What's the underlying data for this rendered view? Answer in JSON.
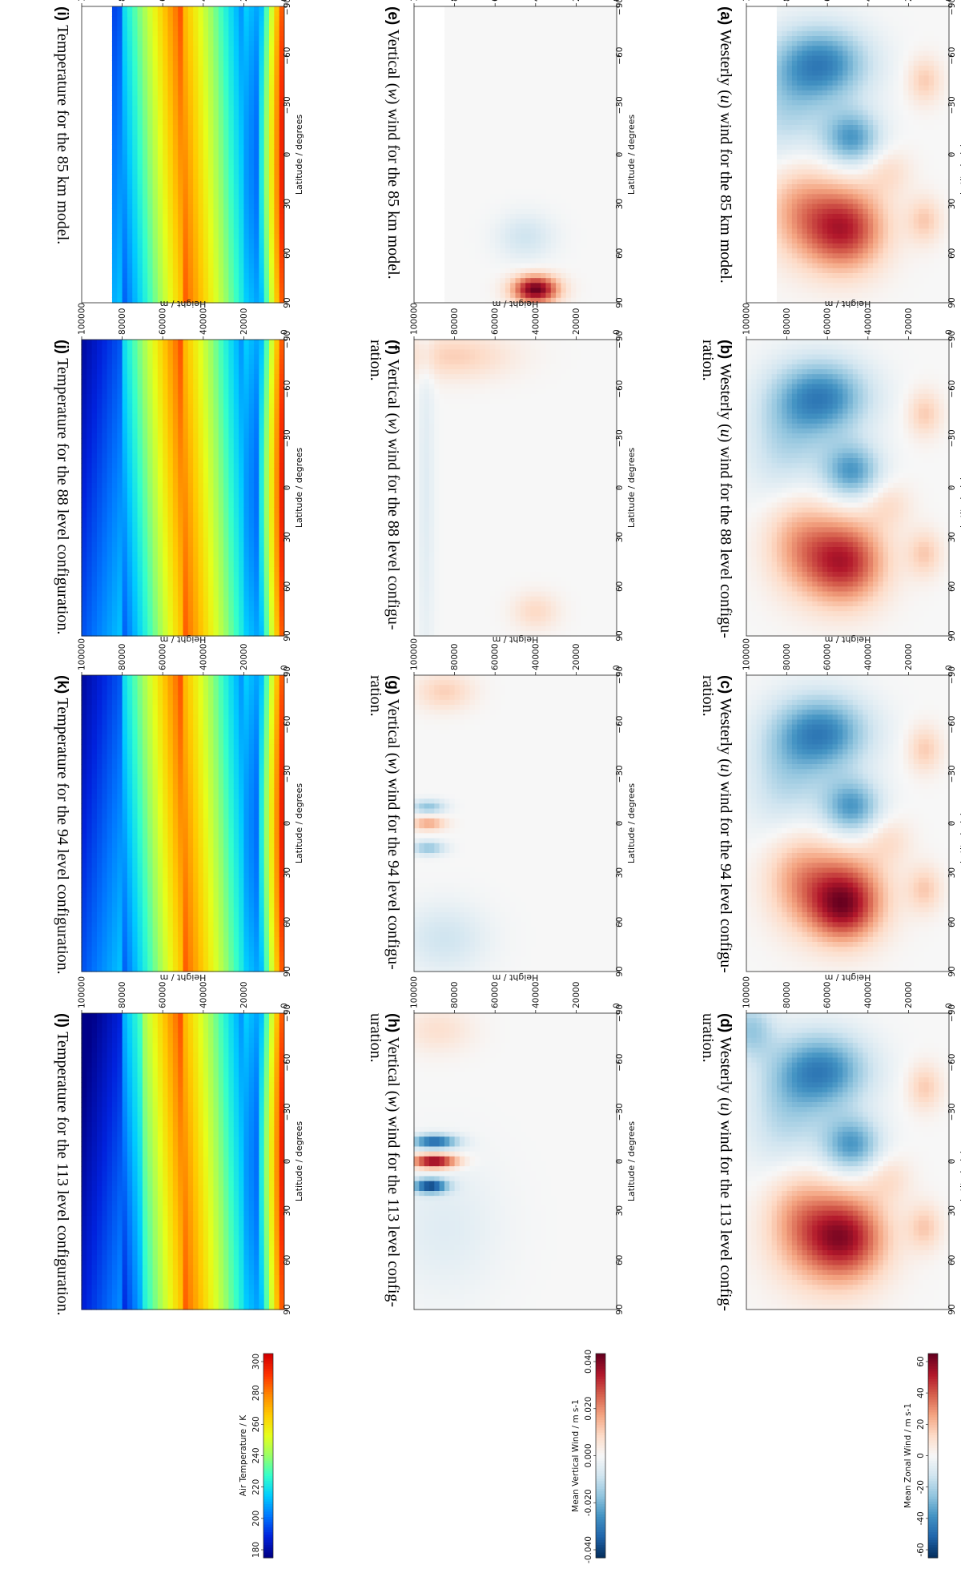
{
  "chart_data": {
    "type": "heatmap",
    "layout_note_orientation": "rotated-90-clockwise",
    "x_axis": {
      "label": "Latitude / degrees",
      "range": [
        -90,
        90
      ],
      "ticks": [
        "−90",
        "−60",
        "−30",
        "0",
        "30",
        "60",
        "90"
      ]
    },
    "y_axis": {
      "label": "Height / m",
      "range": [
        0,
        100000
      ],
      "ticks": [
        "0",
        "20000",
        "40000",
        "60000",
        "80000",
        "100000"
      ]
    },
    "rows": [
      {
        "variable": "zonal",
        "colorbar": {
          "label": "Mean Zonal Wind / m s-1",
          "ticks": [
            "60",
            "40",
            "20",
            "0",
            "-20",
            "-40",
            "-60"
          ],
          "colors": [
            "#67001f",
            "#b2182b",
            "#d6604d",
            "#f4a582",
            "#fddbc7",
            "#f7f7f7",
            "#d1e5f0",
            "#92c5de",
            "#4393c3",
            "#2166ac",
            "#053061"
          ]
        }
      },
      {
        "variable": "vertical",
        "colorbar": {
          "label": "Mean Vertical Wind / m s-1",
          "ticks": [
            "0.040",
            "0.020",
            "0.000",
            "-0.020",
            "-0.040"
          ],
          "colors": [
            "#67001f",
            "#b2182b",
            "#d6604d",
            "#f4a582",
            "#fddbc7",
            "#f7f7f7",
            "#d1e5f0",
            "#92c5de",
            "#4393c3",
            "#2166ac",
            "#053061"
          ]
        }
      },
      {
        "variable": "temperature",
        "colorbar": {
          "label": "Air Temperature / K",
          "ticks": [
            "300",
            "280",
            "260",
            "240",
            "220",
            "200",
            "180"
          ],
          "colors": [
            "#d40000",
            "#ff3300",
            "#ff8800",
            "#ffcc00",
            "#e6ff1a",
            "#99ff66",
            "#33ffcc",
            "#00ccff",
            "#0077ff",
            "#0022dd",
            "#000088"
          ]
        }
      }
    ],
    "panels": [
      {
        "id": "a",
        "row": 0,
        "col": 0,
        "letter": "(a)",
        "caption": [
          "Westerly (",
          "u",
          ") wind for the 85 km model."
        ],
        "top_km": 85
      },
      {
        "id": "b",
        "row": 0,
        "col": 1,
        "letter": "(b)",
        "caption": [
          "Westerly (",
          "u",
          ") wind for the 88 level configu-",
          "ration."
        ],
        "top_km": 100
      },
      {
        "id": "c",
        "row": 0,
        "col": 2,
        "letter": "(c)",
        "caption": [
          "Westerly (",
          "u",
          ") wind for the 94 level configu-",
          "ration."
        ],
        "top_km": 100
      },
      {
        "id": "d",
        "row": 0,
        "col": 3,
        "letter": "(d)",
        "caption": [
          "Westerly (",
          "u",
          ") wind for the 113 level config-",
          "uration."
        ],
        "top_km": 100
      },
      {
        "id": "e",
        "row": 1,
        "col": 0,
        "letter": "(e)",
        "caption": [
          "Vertical (",
          "w",
          ") wind for the 85 km model."
        ],
        "top_km": 85
      },
      {
        "id": "f",
        "row": 1,
        "col": 1,
        "letter": "(f)",
        "caption": [
          "Vertical (",
          "w",
          ") wind for the 88 level configu-",
          "ration."
        ],
        "top_km": 100
      },
      {
        "id": "g",
        "row": 1,
        "col": 2,
        "letter": "(g)",
        "caption": [
          "Vertical (",
          "w",
          ") wind for the 94 level configu-",
          "ration."
        ],
        "top_km": 100
      },
      {
        "id": "h",
        "row": 1,
        "col": 3,
        "letter": "(h)",
        "caption": [
          "Vertical (",
          "w",
          ") wind for the 113 level config-",
          "uration."
        ],
        "top_km": 100
      },
      {
        "id": "i",
        "row": 2,
        "col": 0,
        "letter": "(i)",
        "caption": [
          "Temperature for the 85 km model."
        ],
        "top_km": 85
      },
      {
        "id": "j",
        "row": 2,
        "col": 1,
        "letter": "(j)",
        "caption": [
          "Temperature for the 88 level configuration."
        ],
        "top_km": 100
      },
      {
        "id": "k",
        "row": 2,
        "col": 2,
        "letter": "(k)",
        "caption": [
          "Temperature for the 94 level configuration."
        ],
        "top_km": 100
      },
      {
        "id": "l",
        "row": 2,
        "col": 3,
        "letter": "(l)",
        "caption": [
          "Temperature for the 113 level configuration."
        ],
        "top_km": 100
      }
    ]
  }
}
